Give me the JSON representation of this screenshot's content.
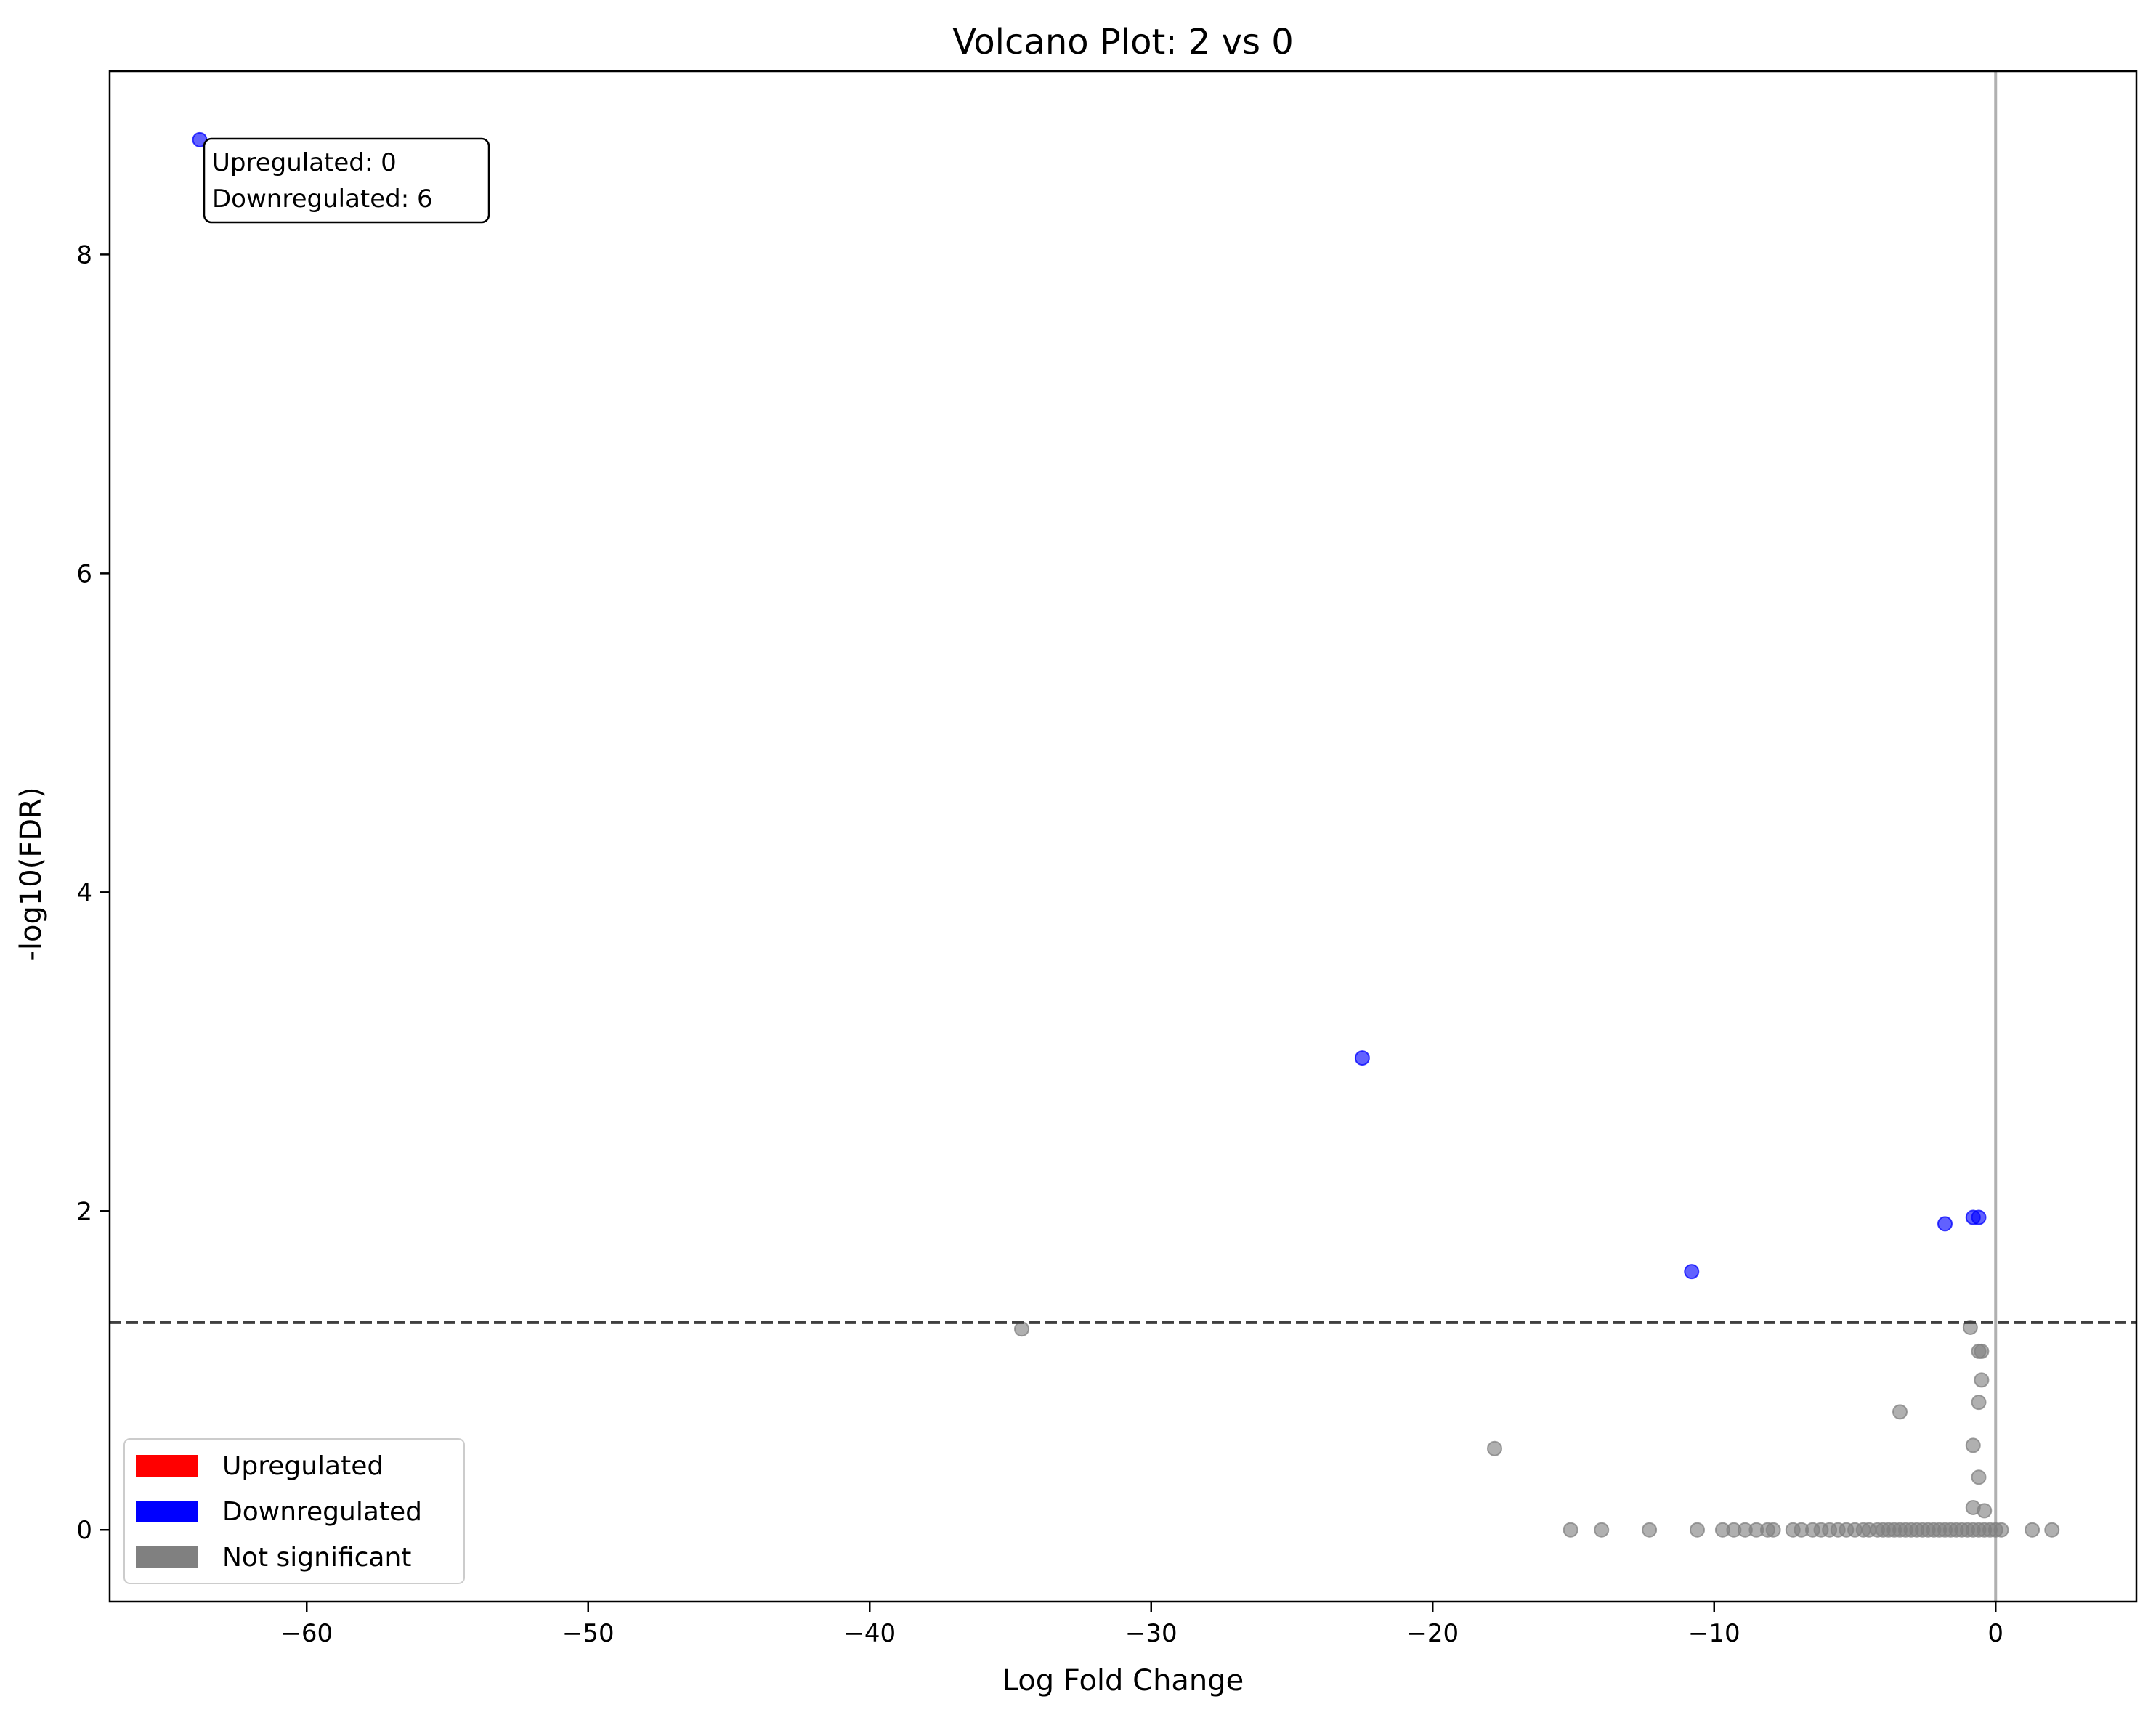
{
  "chart_data": {
    "type": "scatter",
    "title": "Volcano Plot: 2 vs 0",
    "xlabel": "Log Fold Change",
    "ylabel": "-log10(FDR)",
    "xlim": [
      -67,
      5
    ],
    "ylim": [
      -0.45,
      9.15
    ],
    "x_ticks": [
      -60,
      -50,
      -40,
      -30,
      -20,
      -10,
      0
    ],
    "y_ticks": [
      0,
      2,
      4,
      6,
      8
    ],
    "significance_threshold_y": 1.3,
    "zero_line_x": 0,
    "grid": false,
    "legend": {
      "placement": "lower-left",
      "entries": [
        {
          "label": "Upregulated",
          "color": "#ff0000"
        },
        {
          "label": "Downregulated",
          "color": "#0000ff"
        },
        {
          "label": "Not significant",
          "color": "#808080"
        }
      ]
    },
    "annotation": {
      "placement": "top-left",
      "lines": [
        "Upregulated: 0",
        "Downregulated: 6"
      ]
    },
    "colors": {
      "upregulated": "#ff0000",
      "downregulated": "#0000ff",
      "not_significant": "#808080",
      "threshold_line": "#404040",
      "zero_line": "#b0b0b0"
    },
    "series": [
      {
        "name": "Upregulated",
        "points": []
      },
      {
        "name": "Downregulated",
        "points": [
          [
            -63.8,
            8.72
          ],
          [
            -22.5,
            2.96
          ],
          [
            -10.8,
            1.62
          ],
          [
            -1.8,
            1.92
          ],
          [
            -0.8,
            1.96
          ],
          [
            -0.6,
            1.96
          ]
        ]
      },
      {
        "name": "Not significant",
        "points": [
          [
            -34.6,
            1.26
          ],
          [
            -17.8,
            0.51
          ],
          [
            -3.4,
            0.74
          ],
          [
            -0.9,
            1.27
          ],
          [
            -0.6,
            1.12
          ],
          [
            -0.5,
            1.12
          ],
          [
            -0.5,
            0.94
          ],
          [
            -0.6,
            0.8
          ],
          [
            -0.8,
            0.53
          ],
          [
            -0.6,
            0.33
          ],
          [
            -0.8,
            0.14
          ],
          [
            -0.4,
            0.12
          ],
          [
            -15.1,
            0
          ],
          [
            -14.0,
            0
          ],
          [
            -12.3,
            0
          ],
          [
            -10.6,
            0
          ],
          [
            -9.7,
            0
          ],
          [
            -9.3,
            0
          ],
          [
            -8.9,
            0
          ],
          [
            -8.5,
            0
          ],
          [
            -8.1,
            0
          ],
          [
            -7.9,
            0
          ],
          [
            -7.2,
            0
          ],
          [
            -6.9,
            0
          ],
          [
            -6.5,
            0
          ],
          [
            -6.2,
            0
          ],
          [
            -5.9,
            0
          ],
          [
            -5.6,
            0
          ],
          [
            -5.3,
            0
          ],
          [
            -5.0,
            0
          ],
          [
            -4.7,
            0
          ],
          [
            -4.5,
            0
          ],
          [
            -4.2,
            0
          ],
          [
            -4.0,
            0
          ],
          [
            -3.8,
            0
          ],
          [
            -3.6,
            0
          ],
          [
            -3.4,
            0
          ],
          [
            -3.2,
            0
          ],
          [
            -3.0,
            0
          ],
          [
            -2.8,
            0
          ],
          [
            -2.6,
            0
          ],
          [
            -2.4,
            0
          ],
          [
            -2.2,
            0
          ],
          [
            -2.0,
            0
          ],
          [
            -1.8,
            0
          ],
          [
            -1.6,
            0
          ],
          [
            -1.4,
            0
          ],
          [
            -1.2,
            0
          ],
          [
            -1.0,
            0
          ],
          [
            -0.8,
            0
          ],
          [
            -0.6,
            0
          ],
          [
            -0.4,
            0
          ],
          [
            -0.2,
            0
          ],
          [
            0.0,
            0
          ],
          [
            0.2,
            0
          ],
          [
            1.3,
            0
          ],
          [
            2.0,
            0
          ]
        ]
      }
    ]
  }
}
